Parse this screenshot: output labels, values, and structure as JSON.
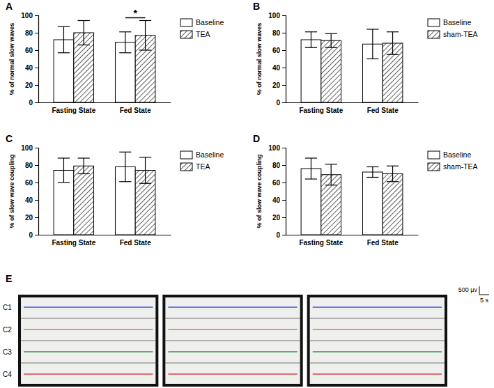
{
  "chart_data": [
    {
      "type": "bar",
      "panel_label": "A",
      "y_label": "% of normal slow waves",
      "categories": [
        "Fasting State",
        "Fed State"
      ],
      "series": [
        {
          "name": "Baseline",
          "color": "#ffffff",
          "values": [
            72,
            69
          ],
          "errors": [
            15,
            12
          ]
        },
        {
          "name": "TEA",
          "color": "#333333",
          "values": [
            80,
            77
          ],
          "errors": [
            14,
            17
          ]
        }
      ],
      "ylim": [
        0,
        100
      ],
      "yticks": [
        0,
        20,
        40,
        60,
        80,
        100
      ],
      "legend": "right",
      "annotations": [
        {
          "text": "*",
          "category": 1
        }
      ]
    },
    {
      "type": "bar",
      "panel_label": "B",
      "y_label": "% of normal slow waves",
      "categories": [
        "Fasting State",
        "Fed State"
      ],
      "series": [
        {
          "name": "Baseline",
          "color": "#ffffff",
          "values": [
            72,
            67
          ],
          "errors": [
            9,
            17
          ]
        },
        {
          "name": "sham-TEA",
          "color": "#333333",
          "values": [
            71,
            68
          ],
          "errors": [
            8,
            13
          ]
        }
      ],
      "ylim": [
        0,
        100
      ],
      "yticks": [
        0,
        20,
        40,
        60,
        80,
        100
      ],
      "legend": "right"
    },
    {
      "type": "bar",
      "panel_label": "C",
      "y_label": "% of slow wave coupling",
      "categories": [
        "Fasting State",
        "Fed State"
      ],
      "series": [
        {
          "name": "Baseline",
          "color": "#ffffff",
          "values": [
            74,
            78
          ],
          "errors": [
            14,
            17
          ]
        },
        {
          "name": "TEA",
          "color": "#333333",
          "values": [
            79,
            74
          ],
          "errors": [
            9,
            15
          ]
        }
      ],
      "ylim": [
        0,
        100
      ],
      "yticks": [
        0,
        20,
        40,
        60,
        80,
        100
      ],
      "legend": "right"
    },
    {
      "type": "bar",
      "panel_label": "D",
      "y_label": "% of slow wave coupling",
      "categories": [
        "Fasting State",
        "Fed State"
      ],
      "series": [
        {
          "name": "Baseline",
          "color": "#ffffff",
          "values": [
            76,
            72
          ],
          "errors": [
            12,
            6
          ]
        },
        {
          "name": "sham-TEA",
          "color": "#333333",
          "values": [
            69,
            70
          ],
          "errors": [
            12,
            9
          ]
        }
      ],
      "ylim": [
        0,
        100
      ],
      "yticks": [
        0,
        20,
        40,
        60,
        80,
        100
      ],
      "legend": "right"
    }
  ],
  "panel_e": {
    "label": "E",
    "channels": [
      "C1",
      "C2",
      "C3",
      "C4"
    ],
    "scale_bar": {
      "amplitude": "500 μv",
      "time": "5 s"
    }
  }
}
